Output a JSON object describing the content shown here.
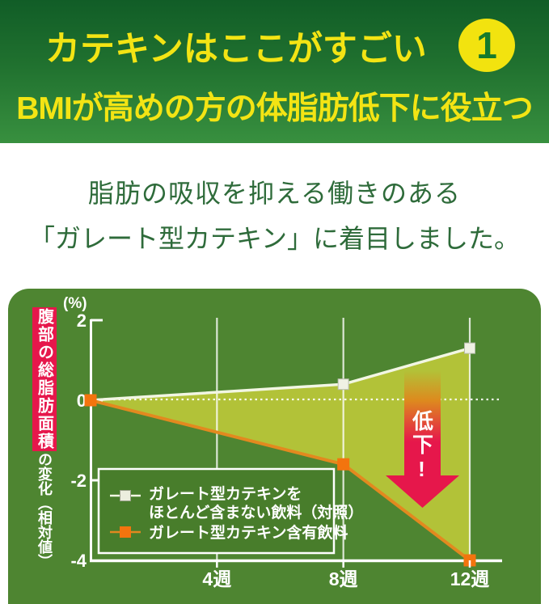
{
  "header": {
    "title": "カテキンはここがすごい",
    "badge": "1",
    "subtitle": "BMIが高めの方の体脂肪低下に役立つ"
  },
  "intro": {
    "line1": "脂肪の吸収を抑える働きのある",
    "line2": "「ガレート型カテキン」に着目しました。"
  },
  "chart": {
    "y_axis_banner": "腹部の総脂肪面積",
    "y_axis_sub": "の変化（相対値）",
    "y_unit": "(%)",
    "annotation": "低下!",
    "legend": {
      "control_line1": "ガレート型カテキンを",
      "control_line2": "ほとんど含まない飲料（対照）",
      "catechin": "ガレート型カテキン含有飲料"
    }
  },
  "chart_data": {
    "type": "line",
    "title": "",
    "ylabel": "腹部の総脂肪面積の変化（相対値）",
    "y_unit": "(%)",
    "ylim": [
      -4,
      2
    ],
    "x_weeks": [
      0,
      8,
      12
    ],
    "series": [
      {
        "name": "ガレート型カテキンをほとんど含まない飲料（対照）",
        "values": [
          0,
          0.4,
          1.3
        ],
        "color": "#f2f6e3",
        "marker_color": "#f0f1e4",
        "marker_weeks": [
          8,
          12
        ]
      },
      {
        "name": "ガレート型カテキン含有飲料",
        "values": [
          0,
          -1.6,
          -4.0
        ],
        "color": "#e2891f",
        "marker_color": "#f3740e",
        "marker_weeks": [
          0,
          8,
          12
        ]
      }
    ],
    "yticks": [
      {
        "value": 2,
        "label": "2"
      },
      {
        "value": 0,
        "label": "0"
      },
      {
        "value": -2,
        "label": "-2"
      },
      {
        "value": -4,
        "label": "-4"
      }
    ],
    "xticks": [
      {
        "week": 4,
        "label": "4週"
      },
      {
        "week": 8,
        "label": "8週"
      },
      {
        "week": 12,
        "label": "12週"
      }
    ],
    "fill_between_color": "#b2c238",
    "annotation": "低下!",
    "legend_position": "lower-left",
    "grid": "vertical-only"
  },
  "colors": {
    "header_green_dark": "#115d27",
    "header_green_light": "#38903f",
    "accent_yellow": "#f3e414",
    "intro_text_green": "#2e6b3a",
    "panel_green": "#4e8531",
    "area_fill": "#b2c238",
    "banner_red": "#e6174b",
    "arrow_red": "#e6174b",
    "line_orange": "#e2891f",
    "marker_orange": "#f3740e",
    "line_cream": "#f2f6e3"
  }
}
